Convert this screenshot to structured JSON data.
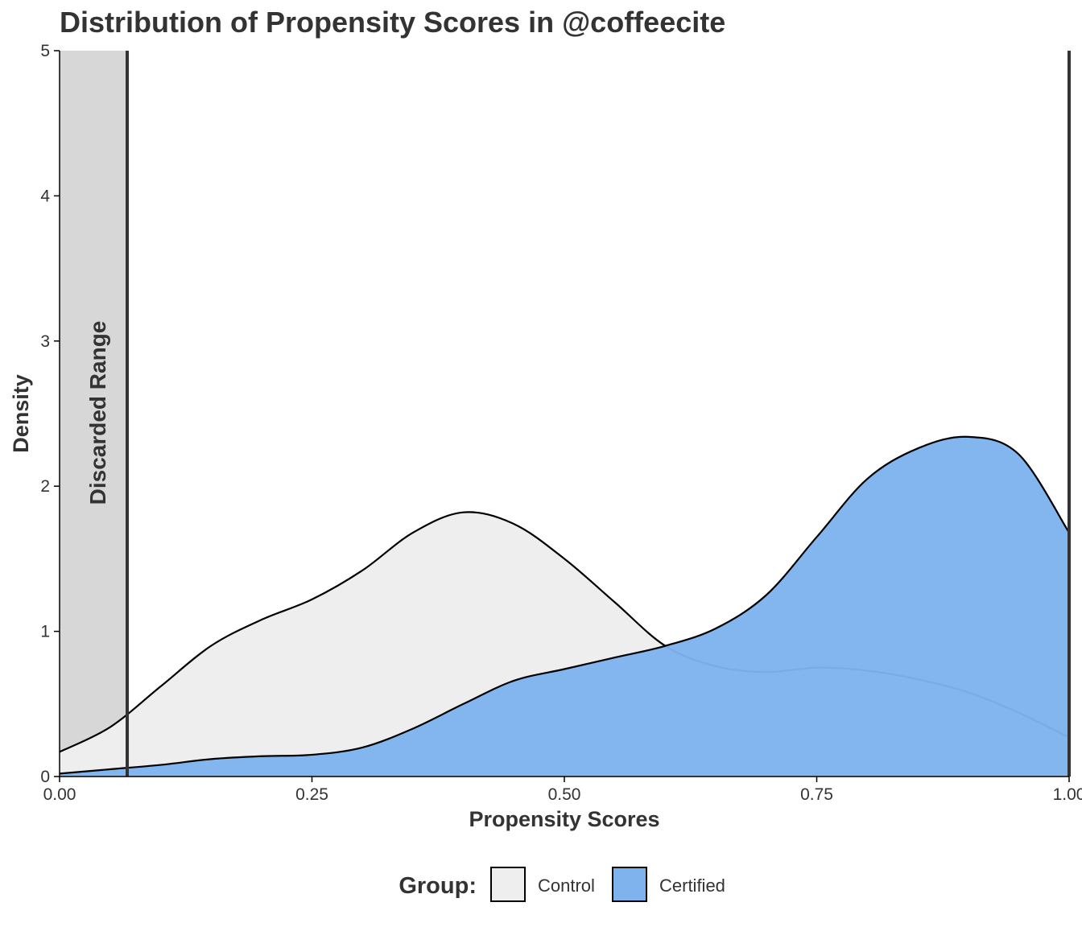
{
  "chart_data": {
    "type": "area",
    "title": "Distribution of Propensity Scores in @coffeecite",
    "xlabel": "Propensity Scores",
    "ylabel": "Density",
    "xlim": [
      0,
      1
    ],
    "ylim": [
      0,
      5
    ],
    "x_ticks": [
      "0.00",
      "0.25",
      "0.50",
      "0.75",
      "1.00"
    ],
    "y_ticks": [
      "0",
      "1",
      "2",
      "3",
      "4",
      "5"
    ],
    "grid": false,
    "legend_position": "bottom",
    "legend_title": "Group:",
    "discarded_range": {
      "label": "Discarded Range",
      "from": 0,
      "to": 0.067
    },
    "right_boundary": 1.0,
    "series": [
      {
        "name": "Control",
        "color": "#EEEEEE",
        "x": [
          0,
          0.05,
          0.1,
          0.15,
          0.2,
          0.25,
          0.3,
          0.35,
          0.4,
          0.45,
          0.5,
          0.55,
          0.6,
          0.65,
          0.7,
          0.75,
          0.8,
          0.85,
          0.9,
          0.95,
          1.0
        ],
        "y": [
          0.17,
          0.34,
          0.62,
          0.9,
          1.08,
          1.22,
          1.42,
          1.68,
          1.82,
          1.74,
          1.5,
          1.2,
          0.9,
          0.76,
          0.72,
          0.75,
          0.73,
          0.67,
          0.58,
          0.44,
          0.27
        ]
      },
      {
        "name": "Certified",
        "color": "#7EB3EE",
        "x": [
          0,
          0.05,
          0.1,
          0.15,
          0.2,
          0.25,
          0.3,
          0.35,
          0.4,
          0.45,
          0.5,
          0.55,
          0.6,
          0.65,
          0.7,
          0.75,
          0.8,
          0.85,
          0.9,
          0.95,
          1.0
        ],
        "y": [
          0.02,
          0.05,
          0.08,
          0.12,
          0.14,
          0.15,
          0.2,
          0.33,
          0.5,
          0.66,
          0.74,
          0.82,
          0.9,
          1.02,
          1.25,
          1.65,
          2.05,
          2.26,
          2.34,
          2.22,
          1.68
        ]
      }
    ]
  }
}
